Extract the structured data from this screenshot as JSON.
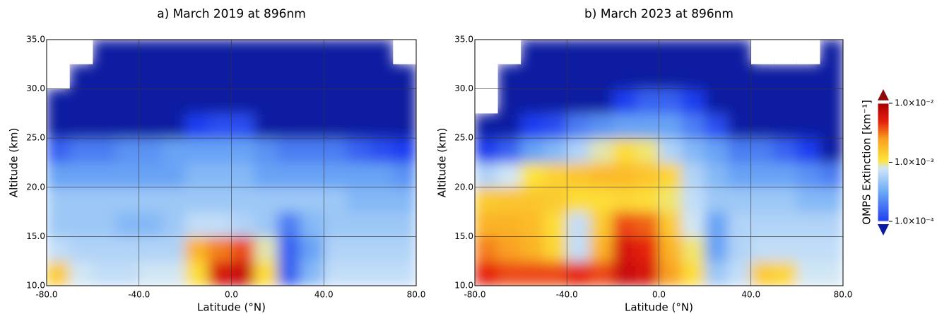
{
  "chart_data": [
    {
      "type": "heatmap",
      "title": "a) March 2019 at 896nm",
      "xlabel": "Latitude (°N)",
      "ylabel": "Altitude (km)",
      "x": [
        -75,
        -65,
        -55,
        -45,
        -35,
        -25,
        -15,
        -5,
        5,
        15,
        25,
        35,
        45,
        55,
        65,
        75
      ],
      "y": [
        11.25,
        13.75,
        16.25,
        18.75,
        21.25,
        23.75,
        26.25,
        28.75,
        31.25,
        33.75
      ],
      "z": [
        [
          0.0015,
          0.0008,
          0.0007,
          0.0007,
          0.0008,
          0.0008,
          0.0012,
          0.006,
          0.007,
          0.0012,
          0.00015,
          0.0004,
          0.0007,
          0.0007,
          0.0007,
          0.0007
        ],
        [
          0.0007,
          0.0006,
          0.0006,
          0.0006,
          0.0006,
          0.0006,
          0.002,
          0.003,
          0.004,
          0.0009,
          0.00015,
          0.0003,
          0.0006,
          0.0006,
          0.0006,
          0.0006
        ],
        [
          0.0005,
          0.0005,
          0.0005,
          0.0004,
          0.0004,
          0.0005,
          0.0007,
          0.0007,
          0.0006,
          0.0005,
          0.0002,
          0.0004,
          0.0005,
          0.0005,
          0.0005,
          0.0005
        ],
        [
          0.0005,
          0.0005,
          0.0005,
          0.0005,
          0.0005,
          0.0005,
          0.0005,
          0.0005,
          0.0005,
          0.0005,
          0.0005,
          0.0005,
          0.0005,
          0.0004,
          0.0004,
          0.0004
        ],
        [
          0.0003,
          0.0003,
          0.0003,
          0.0003,
          0.0003,
          0.0003,
          0.0004,
          0.0004,
          0.0004,
          0.0003,
          0.0003,
          0.0003,
          0.0003,
          0.0003,
          0.0003,
          0.00025
        ],
        [
          0.00015,
          0.0002,
          0.0002,
          0.00025,
          0.00025,
          0.0003,
          0.0003,
          0.0003,
          0.0003,
          0.00025,
          0.0002,
          0.0002,
          0.0002,
          0.00015,
          0.00012,
          0.0001
        ],
        [
          8e-05,
          8e-05,
          8e-05,
          8e-05,
          8e-05,
          8e-05,
          0.0001,
          0.00012,
          0.00012,
          8e-05,
          8e-05,
          8e-05,
          8e-05,
          8e-05,
          8e-05,
          8e-05
        ],
        [
          8e-05,
          8e-05,
          8e-05,
          8e-05,
          8e-05,
          8e-05,
          8e-05,
          8e-05,
          8e-05,
          8e-05,
          8e-05,
          8e-05,
          8e-05,
          8e-05,
          8e-05,
          8e-05
        ],
        [
          null,
          8e-05,
          8e-05,
          8e-05,
          8e-05,
          8e-05,
          8e-05,
          8e-05,
          8e-05,
          8e-05,
          8e-05,
          8e-05,
          8e-05,
          8e-05,
          8e-05,
          8e-05
        ],
        [
          null,
          null,
          8e-05,
          8e-05,
          8e-05,
          8e-05,
          8e-05,
          8e-05,
          8e-05,
          8e-05,
          8e-05,
          8e-05,
          8e-05,
          8e-05,
          8e-05,
          null
        ]
      ],
      "xlim": [
        -80,
        80
      ],
      "ylim": [
        10,
        35
      ],
      "xticks": [
        {
          "value": -80,
          "label": "-80.0"
        },
        {
          "value": -40,
          "label": "-40.0"
        },
        {
          "value": 0,
          "label": "0.0"
        },
        {
          "value": 40,
          "label": "40.0"
        },
        {
          "value": 80,
          "label": "80.0"
        }
      ],
      "yticks": [
        {
          "value": 10,
          "label": "10.0"
        },
        {
          "value": 15,
          "label": "15.0"
        },
        {
          "value": 20,
          "label": "20.0"
        },
        {
          "value": 25,
          "label": "25.0"
        },
        {
          "value": 30,
          "label": "30.0"
        },
        {
          "value": 35,
          "label": "35.0"
        }
      ],
      "zlim": [
        0.0001,
        0.01
      ],
      "zscale": "log",
      "grid": true
    },
    {
      "type": "heatmap",
      "title": "b) March 2023 at 896nm",
      "xlabel": "Latitude (°N)",
      "ylabel": "Altitude (km)",
      "x": [
        -75,
        -65,
        -55,
        -45,
        -35,
        -25,
        -15,
        -5,
        5,
        15,
        25,
        35,
        45,
        55,
        65,
        75
      ],
      "y": [
        11.25,
        13.75,
        16.25,
        18.75,
        21.25,
        23.75,
        26.25,
        28.75,
        31.25,
        33.75
      ],
      "z": [
        [
          0.005,
          0.004,
          0.004,
          0.004,
          0.005,
          0.004,
          0.007,
          0.006,
          0.0025,
          0.0012,
          0.0005,
          0.0007,
          0.0015,
          0.0013,
          0.0008,
          0.0008
        ],
        [
          0.003,
          0.0025,
          0.002,
          0.0013,
          0.0007,
          0.002,
          0.006,
          0.005,
          0.002,
          0.001,
          0.0003,
          0.0006,
          0.0007,
          0.0007,
          0.0007,
          0.0007
        ],
        [
          0.002,
          0.002,
          0.0018,
          0.0012,
          0.0007,
          0.0015,
          0.004,
          0.0035,
          0.0015,
          0.0008,
          0.0003,
          0.0006,
          0.0006,
          0.0006,
          0.0006,
          0.0006
        ],
        [
          0.0015,
          0.0016,
          0.0016,
          0.0015,
          0.0012,
          0.0012,
          0.0013,
          0.0012,
          0.001,
          0.0007,
          0.0005,
          0.0005,
          0.0005,
          0.0005,
          0.0004,
          0.0004
        ],
        [
          0.0006,
          0.0008,
          0.0011,
          0.0014,
          0.0016,
          0.0018,
          0.0018,
          0.0016,
          0.0013,
          0.0006,
          0.0004,
          0.0003,
          0.0003,
          0.0003,
          0.00025,
          0.0002
        ],
        [
          0.0001,
          0.00015,
          0.0003,
          0.0004,
          0.0006,
          0.0009,
          0.0012,
          0.001,
          0.0006,
          0.0004,
          0.0003,
          0.0002,
          0.0002,
          0.00015,
          0.0001,
          8e-05
        ],
        [
          8e-05,
          8e-05,
          0.0001,
          0.00012,
          0.0002,
          0.00025,
          0.0003,
          0.0003,
          0.0003,
          0.0002,
          0.00012,
          8e-05,
          8e-05,
          8e-05,
          8e-05,
          8e-05
        ],
        [
          null,
          8e-05,
          8e-05,
          8e-05,
          8e-05,
          8e-05,
          0.0001,
          0.00015,
          0.00015,
          0.0001,
          8e-05,
          8e-05,
          8e-05,
          8e-05,
          8e-05,
          8e-05
        ],
        [
          null,
          8e-05,
          8e-05,
          8e-05,
          8e-05,
          8e-05,
          8e-05,
          8e-05,
          8e-05,
          8e-05,
          8e-05,
          8e-05,
          8e-05,
          8e-05,
          8e-05,
          8e-05
        ],
        [
          null,
          null,
          8e-05,
          8e-05,
          8e-05,
          8e-05,
          8e-05,
          8e-05,
          8e-05,
          8e-05,
          8e-05,
          8e-05,
          null,
          null,
          null,
          8e-05
        ]
      ],
      "xlim": [
        -80,
        80
      ],
      "ylim": [
        10,
        35
      ],
      "xticks": [
        {
          "value": -80,
          "label": "-80.0"
        },
        {
          "value": -40,
          "label": "-40.0"
        },
        {
          "value": 0,
          "label": "0.0"
        },
        {
          "value": 40,
          "label": "40.0"
        },
        {
          "value": 80,
          "label": "80.0"
        }
      ],
      "yticks": [
        {
          "value": 10,
          "label": "10.0"
        },
        {
          "value": 15,
          "label": "15.0"
        },
        {
          "value": 20,
          "label": "20.0"
        },
        {
          "value": 25,
          "label": "25.0"
        },
        {
          "value": 30,
          "label": "30.0"
        },
        {
          "value": 35,
          "label": "35.0"
        }
      ],
      "zlim": [
        0.0001,
        0.01
      ],
      "zscale": "log",
      "grid": true,
      "colorbar": {
        "label": "OMPS Extinction [km⁻¹]",
        "ticks": [
          {
            "value": 0.0001,
            "label": "1.0×10⁻⁴"
          },
          {
            "value": 0.001,
            "label": "1.0×10⁻³"
          },
          {
            "value": 0.01,
            "label": "1.0×10⁻²"
          }
        ]
      }
    }
  ]
}
